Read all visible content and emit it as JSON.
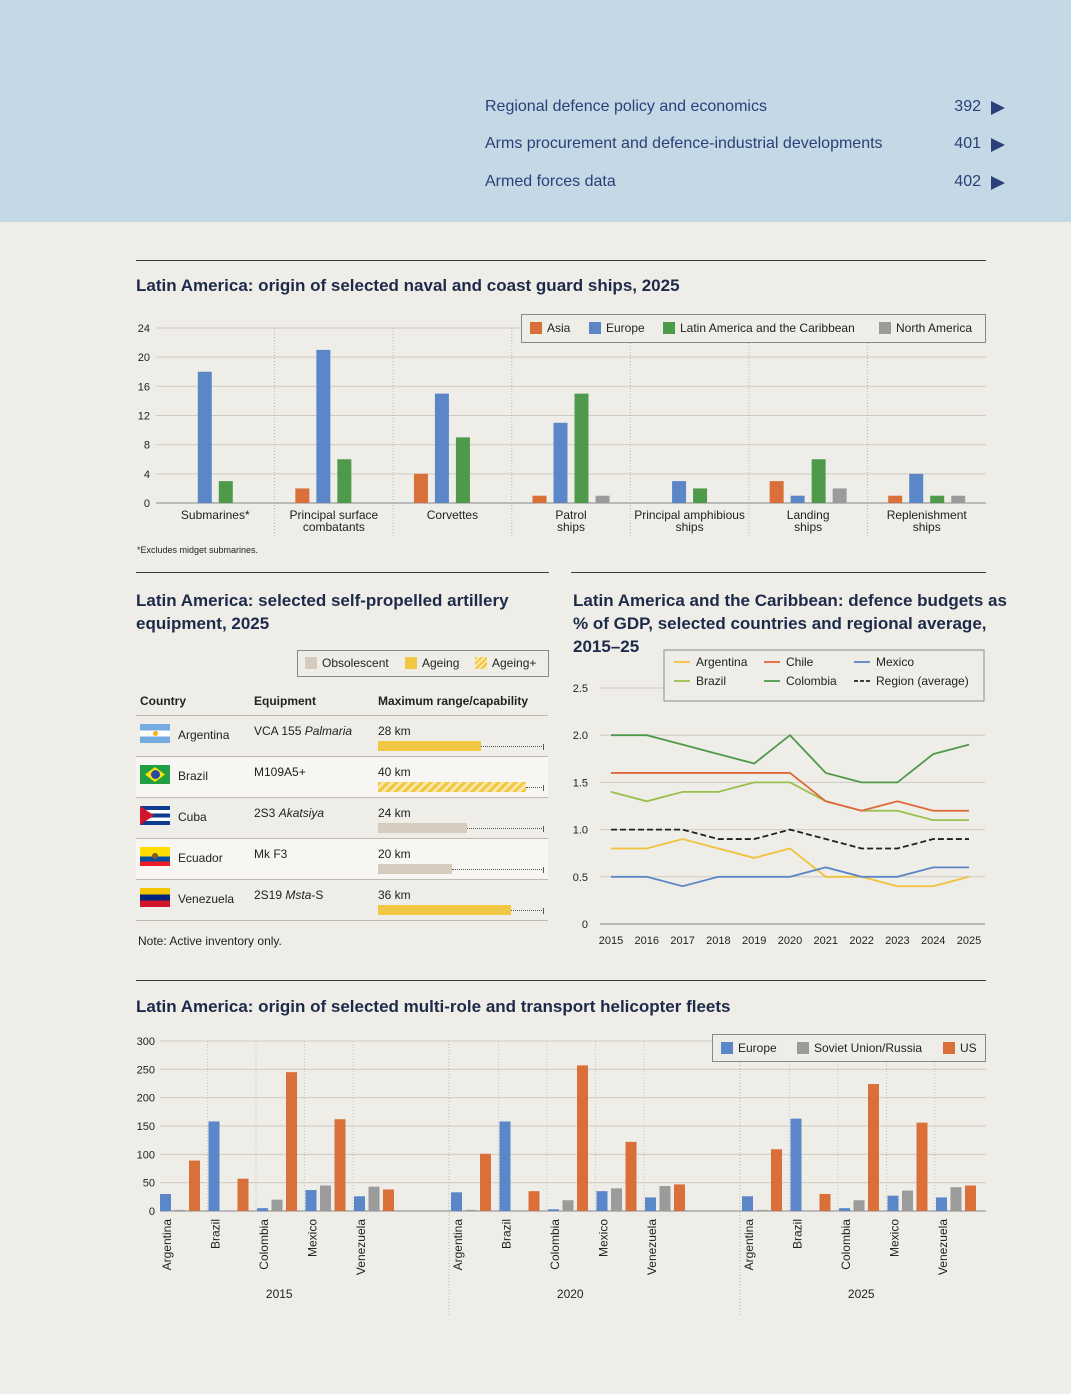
{
  "toc": [
    {
      "label": "Regional defence policy and economics",
      "page": "392"
    },
    {
      "label": "Arms procurement and defence-industrial developments",
      "page": "401"
    },
    {
      "label": "Armed forces data",
      "page": "402"
    }
  ],
  "naval": {
    "title": "Latin America: origin of selected naval and coast guard ships, 2025",
    "footnote": "*Excludes midget submarines.",
    "legend": [
      {
        "name": "Asia",
        "color": "#d9703a"
      },
      {
        "name": "Europe",
        "color": "#5b86c8"
      },
      {
        "name": "Latin America and the Caribbean",
        "color": "#4f9a4a"
      },
      {
        "name": "North America",
        "color": "#9b9b9b"
      }
    ]
  },
  "artillery": {
    "title_line1": "Latin America: selected self-propelled artillery",
    "title_line2": "equipment, 2025",
    "legend": [
      {
        "name": "Obsolescent",
        "color": "#d6ccbe"
      },
      {
        "name": "Ageing",
        "color": "#f2c744"
      },
      {
        "name": "Ageing+",
        "color": "#f2c744"
      }
    ],
    "headers": {
      "country": "Country",
      "equipment": "Equipment",
      "range": "Maximum range/capability"
    },
    "rows": [
      {
        "country": "Argentina",
        "equip_main": "VCA 155 ",
        "equip_italic": "Palmaria",
        "range_label": "28 km",
        "range_km": 28,
        "status": "Ageing",
        "flag": "argentina-flag"
      },
      {
        "country": "Brazil",
        "equip_main": "M109A5+",
        "equip_italic": "",
        "range_label": "40 km",
        "range_km": 40,
        "status": "Ageing+",
        "flag": "brazil-flag"
      },
      {
        "country": "Cuba",
        "equip_main": "2S3 ",
        "equip_italic": "Akatsiya",
        "range_label": "24 km",
        "range_km": 24,
        "status": "Obsolescent",
        "flag": "cuba-flag"
      },
      {
        "country": "Ecuador",
        "equip_main": "Mk F3",
        "equip_italic": "",
        "range_label": "20 km",
        "range_km": 20,
        "status": "Obsolescent",
        "flag": "ecuador-flag"
      },
      {
        "country": "Venezuela",
        "equip_main": "2S19 ",
        "equip_italic": "Msta",
        "equip_suffix": "-S",
        "range_label": "36 km",
        "range_km": 36,
        "status": "Ageing",
        "flag": "venezuela-flag"
      }
    ],
    "note": "Note: Active inventory only."
  },
  "budgets": {
    "title_line1": "Latin America and the Caribbean: defence budgets as",
    "title_line2": "% of GDP, selected countries and regional average,",
    "title_line3": "2015–25"
  },
  "heli": {
    "title": "Latin America: origin of selected multi-role and transport helicopter fleets",
    "legend": [
      {
        "name": "Europe",
        "color": "#5b86c8"
      },
      {
        "name": "Soviet Union/Russia",
        "color": "#9b9b9b"
      },
      {
        "name": "US",
        "color": "#d9703a"
      }
    ]
  },
  "chart_data": [
    {
      "type": "bar",
      "title": "Latin America: origin of selected naval and coast guard ships, 2025",
      "categories": [
        "Submarines*",
        "Principal surface combatants",
        "Corvettes",
        "Patrol ships",
        "Principal amphibious ships",
        "Landing ships",
        "Replenishment ships"
      ],
      "ylim": [
        0,
        24
      ],
      "yticks": [
        0,
        4,
        8,
        12,
        16,
        20,
        24
      ],
      "legend_position": "top-right",
      "series": [
        {
          "name": "Asia",
          "color": "#d9703a",
          "values": [
            0,
            2,
            4,
            1,
            0,
            3,
            1
          ]
        },
        {
          "name": "Europe",
          "color": "#5b86c8",
          "values": [
            18,
            21,
            15,
            11,
            3,
            1,
            4
          ]
        },
        {
          "name": "Latin America and the Caribbean",
          "color": "#4f9a4a",
          "values": [
            3,
            6,
            9,
            15,
            2,
            6,
            1
          ]
        },
        {
          "name": "North America",
          "color": "#9b9b9b",
          "values": [
            0,
            0,
            0,
            1,
            0,
            2,
            1
          ]
        }
      ]
    },
    {
      "type": "table",
      "title": "Latin America: selected self-propelled artillery equipment, 2025",
      "columns": [
        "Country",
        "Equipment",
        "Maximum range/capability"
      ],
      "rows": [
        [
          "Argentina",
          "VCA 155 Palmaria",
          "28 km"
        ],
        [
          "Brazil",
          "M109A5+",
          "40 km"
        ],
        [
          "Cuba",
          "2S3 Akatsiya",
          "24 km"
        ],
        [
          "Ecuador",
          "Mk F3",
          "20 km"
        ],
        [
          "Venezuela",
          "2S19 Msta-S",
          "36 km"
        ]
      ]
    },
    {
      "type": "line",
      "title": "Latin America and the Caribbean: defence budgets as % of GDP, selected countries and regional average, 2015–25",
      "x": [
        2015,
        2016,
        2017,
        2018,
        2019,
        2020,
        2021,
        2022,
        2023,
        2024,
        2025
      ],
      "ylim": [
        0,
        2.5
      ],
      "yticks": [
        0,
        0.5,
        1.0,
        1.5,
        2.0,
        2.5
      ],
      "ytick_labels": [
        "0",
        "0.5",
        "1.0",
        "1.5",
        "2.0",
        "2.5"
      ],
      "legend_position": "top-right",
      "series": [
        {
          "name": "Argentina",
          "color": "#f2c23c",
          "values": [
            0.8,
            0.8,
            0.9,
            0.8,
            0.7,
            0.8,
            0.5,
            0.5,
            0.4,
            0.4,
            0.5
          ]
        },
        {
          "name": "Brazil",
          "color": "#9bbf4f",
          "values": [
            1.4,
            1.3,
            1.4,
            1.4,
            1.5,
            1.5,
            1.3,
            1.2,
            1.2,
            1.1,
            1.1
          ]
        },
        {
          "name": "Chile",
          "color": "#e0673a",
          "values": [
            1.6,
            1.6,
            1.6,
            1.6,
            1.6,
            1.6,
            1.3,
            1.2,
            1.3,
            1.2,
            1.2
          ]
        },
        {
          "name": "Colombia",
          "color": "#4f9a4a",
          "values": [
            2.0,
            2.0,
            1.9,
            1.8,
            1.7,
            2.0,
            1.6,
            1.5,
            1.5,
            1.8,
            1.9
          ]
        },
        {
          "name": "Mexico",
          "color": "#5b86c8",
          "values": [
            0.5,
            0.5,
            0.4,
            0.5,
            0.5,
            0.5,
            0.6,
            0.5,
            0.5,
            0.6,
            0.6
          ]
        },
        {
          "name": "Region (average)",
          "color": "#222222",
          "dashed": true,
          "values": [
            1.0,
            1.0,
            1.0,
            0.9,
            0.9,
            1.0,
            0.9,
            0.8,
            0.8,
            0.9,
            0.9
          ]
        }
      ]
    },
    {
      "type": "bar",
      "title": "Latin America: origin of selected multi-role and transport helicopter fleets",
      "ylim": [
        0,
        300
      ],
      "yticks": [
        0,
        50,
        100,
        150,
        200,
        250,
        300
      ],
      "legend_position": "top-right",
      "groups": [
        "2015",
        "2020",
        "2025"
      ],
      "categories": [
        "Argentina",
        "Brazil",
        "Colombia",
        "Mexico",
        "Venezuela"
      ],
      "series": [
        {
          "name": "Europe",
          "color": "#5b86c8",
          "values": [
            [
              30,
              158,
              5,
              37,
              26
            ],
            [
              33,
              158,
              3,
              35,
              24
            ],
            [
              26,
              163,
              5,
              27,
              24
            ]
          ]
        },
        {
          "name": "Soviet Union/Russia",
          "color": "#9b9b9b",
          "values": [
            [
              2,
              0,
              20,
              45,
              43
            ],
            [
              2,
              0,
              19,
              40,
              44
            ],
            [
              2,
              0,
              19,
              36,
              42
            ]
          ]
        },
        {
          "name": "US",
          "color": "#d9703a",
          "values": [
            [
              89,
              57,
              245,
              162,
              38
            ],
            [
              101,
              35,
              257,
              122,
              47
            ],
            [
              109,
              30,
              224,
              156,
              45
            ]
          ]
        }
      ]
    }
  ]
}
